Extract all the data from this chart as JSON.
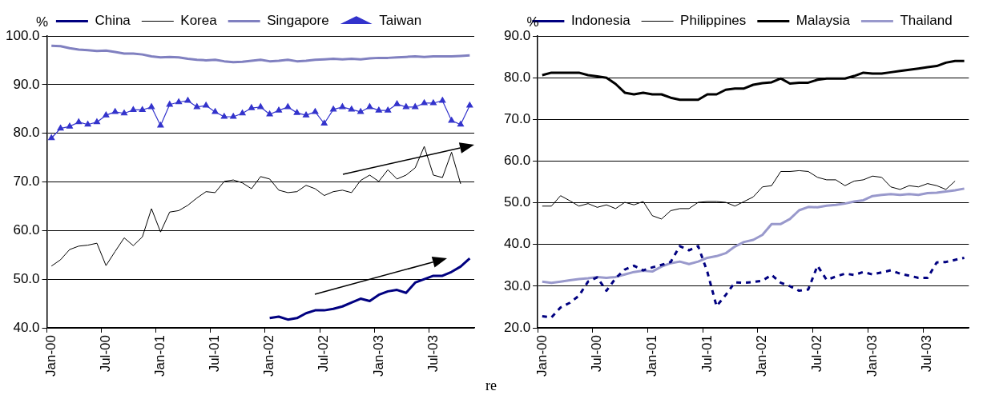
{
  "chart_data": [
    {
      "type": "line",
      "ylabel": "%",
      "legend": "top",
      "grid": "y",
      "categories": [
        "Jan-00",
        null,
        null,
        null,
        null,
        null,
        "Jul-00",
        null,
        null,
        null,
        null,
        null,
        "Jan-01",
        null,
        null,
        null,
        null,
        null,
        "Jul-01",
        null,
        null,
        null,
        null,
        null,
        "Jan-02",
        null,
        null,
        null,
        null,
        null,
        "Jul-02",
        null,
        null,
        null,
        null,
        null,
        "Jan-03",
        null,
        null,
        null,
        null,
        null,
        "Jul-03",
        null,
        null,
        null,
        null
      ],
      "ylim": [
        40,
        100
      ],
      "yticks": [
        {
          "value": 40,
          "label": "40.0"
        },
        {
          "value": 50,
          "label": "50.0"
        },
        {
          "value": 60,
          "label": "60.0"
        },
        {
          "value": 70,
          "label": "70.0"
        },
        {
          "value": 80,
          "label": "80.0"
        },
        {
          "value": 90,
          "label": "90.0"
        },
        {
          "value": 100,
          "label": "100.0"
        }
      ],
      "annotations": [
        "re"
      ],
      "series": [
        {
          "name": "China",
          "color": "#000080",
          "marker": "none",
          "line_style": "solid",
          "values": [
            null,
            null,
            null,
            null,
            null,
            null,
            null,
            null,
            null,
            null,
            null,
            null,
            null,
            null,
            null,
            null,
            null,
            null,
            null,
            null,
            null,
            null,
            null,
            null,
            42.0,
            42.3,
            41.7,
            42.0,
            43.0,
            43.6,
            43.6,
            43.9,
            44.4,
            45.2,
            46.0,
            45.5,
            46.8,
            47.5,
            47.8,
            47.2,
            49.3,
            50.0,
            50.7,
            50.7,
            51.5,
            52.6,
            54.3
          ]
        },
        {
          "name": "Korea",
          "color": "#000000",
          "marker": "none",
          "line_style": "solid",
          "values": [
            52.7,
            54.0,
            56.1,
            56.8,
            57.0,
            57.4,
            52.8,
            55.7,
            58.5,
            56.9,
            58.7,
            64.5,
            59.7,
            63.8,
            64.1,
            65.2,
            66.7,
            68.0,
            67.8,
            70.1,
            70.4,
            69.8,
            68.6,
            71.1,
            70.6,
            68.3,
            67.8,
            68.0,
            69.3,
            68.6,
            67.2,
            68.0,
            68.3,
            67.8,
            70.3,
            71.4,
            70.1,
            72.5,
            70.6,
            71.4,
            72.9,
            77.3,
            71.4,
            70.9,
            76.1,
            69.6,
            null
          ]
        },
        {
          "name": "Singapore",
          "color": "#8080c0",
          "marker": "none",
          "line_style": "solid",
          "values": [
            98.0,
            97.9,
            97.5,
            97.2,
            97.1,
            96.9,
            97.0,
            96.7,
            96.4,
            96.4,
            96.2,
            95.8,
            95.6,
            95.7,
            95.6,
            95.3,
            95.1,
            95.0,
            95.1,
            94.8,
            94.6,
            94.7,
            94.9,
            95.1,
            94.8,
            94.9,
            95.1,
            94.8,
            94.9,
            95.1,
            95.2,
            95.3,
            95.2,
            95.3,
            95.2,
            95.4,
            95.5,
            95.5,
            95.6,
            95.7,
            95.8,
            95.7,
            95.8,
            95.8,
            95.8,
            95.9,
            96.0
          ]
        },
        {
          "name": "Taiwan",
          "color": "#3333cc",
          "marker": "triangle",
          "line_style": "solid",
          "values": [
            79.0,
            81.0,
            81.4,
            82.3,
            81.8,
            82.3,
            83.7,
            84.4,
            84.1,
            84.8,
            84.8,
            85.4,
            81.6,
            85.9,
            86.4,
            86.7,
            85.4,
            85.7,
            84.4,
            83.4,
            83.4,
            84.1,
            85.2,
            85.4,
            83.9,
            84.7,
            85.4,
            84.2,
            83.7,
            84.4,
            82.0,
            84.9,
            85.4,
            84.9,
            84.4,
            85.4,
            84.7,
            84.7,
            86.0,
            85.4,
            85.4,
            86.2,
            86.2,
            86.7,
            82.6,
            81.8,
            85.7
          ]
        }
      ]
    },
    {
      "type": "line",
      "ylabel": "%",
      "legend": "top",
      "grid": "y",
      "categories": [
        "Jan-00",
        null,
        null,
        null,
        null,
        null,
        "Jul-00",
        null,
        null,
        null,
        null,
        null,
        "Jan-01",
        null,
        null,
        null,
        null,
        null,
        "Jul-01",
        null,
        null,
        null,
        null,
        null,
        "Jan-02",
        null,
        null,
        null,
        null,
        null,
        "Jul-02",
        null,
        null,
        null,
        null,
        null,
        "Jan-03",
        null,
        null,
        null,
        null,
        null,
        "Jul-03",
        null,
        null,
        null,
        null
      ],
      "ylim": [
        20,
        90
      ],
      "yticks": [
        {
          "value": 20,
          "label": "20.0"
        },
        {
          "value": 30,
          "label": "30.0"
        },
        {
          "value": 40,
          "label": "40.0"
        },
        {
          "value": 50,
          "label": "50.0"
        },
        {
          "value": 60,
          "label": "60.0"
        },
        {
          "value": 70,
          "label": "70.0"
        },
        {
          "value": 80,
          "label": "80.0"
        },
        {
          "value": 90,
          "label": "90.0"
        }
      ],
      "series": [
        {
          "name": "Indonesia",
          "color": "#000080",
          "marker": "none",
          "line_style": "dashed",
          "values": [
            22.8,
            22.5,
            24.9,
            26.0,
            27.7,
            31.1,
            32.1,
            28.9,
            31.9,
            34.0,
            34.9,
            33.8,
            34.5,
            35.1,
            35.8,
            39.6,
            38.6,
            39.6,
            33.4,
            25.2,
            27.9,
            30.9,
            30.8,
            31.0,
            31.3,
            32.7,
            30.8,
            30.0,
            28.9,
            29.2,
            34.9,
            31.5,
            32.3,
            33.0,
            32.7,
            33.4,
            32.8,
            33.3,
            33.8,
            33.0,
            32.5,
            32.0,
            32.0,
            35.7,
            35.8,
            36.3,
            36.8
          ]
        },
        {
          "name": "Philippines",
          "color": "#000000",
          "marker": "none",
          "line_style": "solid",
          "values": [
            49.2,
            49.2,
            51.7,
            50.5,
            49.2,
            49.8,
            48.9,
            49.5,
            48.6,
            50.1,
            49.5,
            50.3,
            46.9,
            46.1,
            48.1,
            48.6,
            48.6,
            50.1,
            50.3,
            50.3,
            50.1,
            49.2,
            50.3,
            51.4,
            53.8,
            54.1,
            57.5,
            57.5,
            57.7,
            57.5,
            56.1,
            55.5,
            55.5,
            54.1,
            55.2,
            55.5,
            56.4,
            56.1,
            53.8,
            53.2,
            54.1,
            53.8,
            54.6,
            54.1,
            53.2,
            55.2,
            null
          ]
        },
        {
          "name": "Malaysia",
          "color": "#000000",
          "marker": "none",
          "line_style": "solid",
          "values": [
            80.6,
            81.2,
            81.2,
            81.2,
            81.2,
            80.6,
            80.3,
            80.0,
            78.5,
            76.4,
            76.0,
            76.4,
            76.0,
            76.0,
            75.2,
            74.7,
            74.7,
            74.7,
            76.0,
            76.0,
            77.1,
            77.4,
            77.4,
            78.3,
            78.7,
            78.9,
            79.8,
            78.6,
            78.8,
            78.8,
            79.5,
            79.8,
            79.8,
            79.8,
            80.4,
            81.2,
            81.0,
            81.0,
            81.3,
            81.6,
            81.9,
            82.2,
            82.5,
            82.8,
            83.6,
            84.0,
            84.0
          ]
        },
        {
          "name": "Thailand",
          "color": "#9999cc",
          "marker": "none",
          "line_style": "solid",
          "values": [
            31.1,
            30.8,
            31.1,
            31.4,
            31.7,
            31.9,
            32.2,
            32.0,
            32.2,
            32.8,
            33.4,
            33.7,
            33.5,
            34.7,
            35.5,
            35.9,
            35.3,
            35.9,
            36.8,
            37.2,
            37.9,
            39.5,
            40.6,
            41.1,
            42.3,
            44.9,
            44.9,
            46.1,
            48.2,
            49.0,
            48.9,
            49.3,
            49.5,
            49.8,
            50.3,
            50.6,
            51.6,
            51.9,
            52.1,
            51.9,
            52.1,
            51.9,
            52.3,
            52.4,
            52.7,
            53.0,
            53.4
          ]
        }
      ]
    }
  ]
}
